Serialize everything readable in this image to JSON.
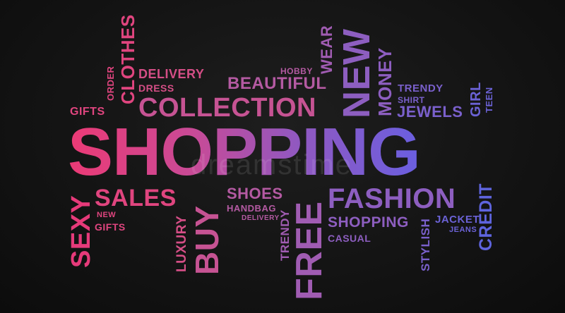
{
  "words": {
    "new_top": "NEW",
    "wear": "WEAR",
    "clothes": "CLOTHES",
    "order": "ORDER",
    "delivery": "DELIVERY",
    "dress": "DRESS",
    "hobby": "HOBBY",
    "beautiful": "BEAUTIFUL",
    "money": "MONEY",
    "trendy_top": "TRENDY",
    "shirt": "SHIRT",
    "girl": "GIRL",
    "teen": "TEEN",
    "gifts_top": "GIFTS",
    "collection": "COLLECTION",
    "jewels": "JEWELS",
    "shopping_main": "SHOPPING",
    "sales": "SALES",
    "shoes": "SHOES",
    "handbag": "HANDBAG",
    "delivery_small": "DELIVERY",
    "fashion": "FASHION",
    "sexy": "SEXY",
    "new_small": "NEW",
    "gifts_small": "GIFTS",
    "luxury": "LUXURY",
    "buy": "BUY",
    "trendy_bottom": "TRENDY",
    "free": "FREE",
    "shopping_small": "SHOPPING",
    "casual": "CASUAL",
    "stylish": "STYLISH",
    "jacket": "JACKET",
    "jeans": "JEANS",
    "credit": "CREDIT"
  },
  "watermark": "dreamstime",
  "colors": {
    "background": "#141414",
    "pink": "#e63a7a",
    "violet": "#a05cb2",
    "blue": "#5e64de"
  }
}
